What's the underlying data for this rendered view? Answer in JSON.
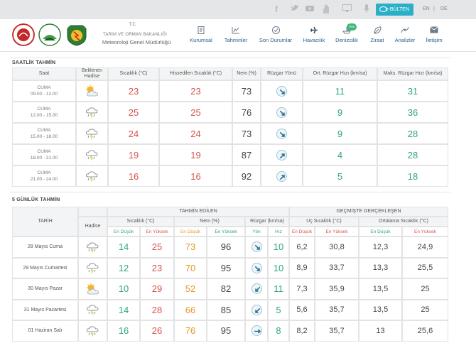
{
  "topbar": {
    "icons": [
      "facebook-icon",
      "twitter-icon",
      "youtube-icon",
      "hand-icon",
      "desktop-icon",
      "microphone-icon"
    ],
    "ebulten_label": "e-BÜLTEN",
    "lang_en": "EN",
    "lang_sep": "|",
    "lang_de": "DE"
  },
  "header": {
    "tc": "T.C.",
    "ministry": "TARIM VE ORMAN BAKANLIĞI",
    "agency": "Meteoroloji Genel Müdürlüğü",
    "nav": [
      {
        "label": "Kurumsal",
        "icon": "book-icon"
      },
      {
        "label": "Tahminler",
        "icon": "chart-icon"
      },
      {
        "label": "Son Durumlar",
        "icon": "check-icon"
      },
      {
        "label": "Havacılık",
        "icon": "plane-icon"
      },
      {
        "label": "Denizcilik",
        "icon": "ship-icon"
      },
      {
        "label": "Ziraat",
        "icon": "leaf-icon"
      },
      {
        "label": "Analizler",
        "icon": "analysis-icon"
      },
      {
        "label": "İletişim",
        "icon": "mail-icon"
      }
    ],
    "yeni_badge": "Yeni"
  },
  "hourly": {
    "title": "SAATLİK TAHMİN",
    "headers": {
      "saat": "Saat",
      "beklenen": "Beklenen\nHadise",
      "sicaklik": "Sıcaklık (°C)",
      "hissedilen": "Hissedilen Sıcaklık (°C)",
      "nem": "Nem (%)",
      "ruzgar_yonu": "Rüzgar Yönü",
      "ort_ruzgar": "Ort. Rüzgar Hızı (km/sa)",
      "maks_ruzgar": "Maks. Rüzgar Hızı (km/sa)"
    },
    "rows": [
      {
        "day": "CUMA",
        "time": "09.00 - 12.00",
        "icon": "partly-cloudy-icon",
        "temp": "23",
        "feels": "23",
        "humidity": "73",
        "wind_dir": "southeast-arrow",
        "avg_wind": "11",
        "max_wind": "31"
      },
      {
        "day": "CUMA",
        "time": "12.00 - 15.00",
        "icon": "rain-thunder-icon",
        "temp": "25",
        "feels": "25",
        "humidity": "76",
        "wind_dir": "southeast-arrow",
        "avg_wind": "9",
        "max_wind": "36"
      },
      {
        "day": "CUMA",
        "time": "15.00 - 18.00",
        "icon": "rain-thunder-icon",
        "temp": "24",
        "feels": "24",
        "humidity": "73",
        "wind_dir": "southeast-arrow",
        "avg_wind": "9",
        "max_wind": "28"
      },
      {
        "day": "CUMA",
        "time": "18.00 - 21.00",
        "icon": "rain-thunder-icon",
        "temp": "19",
        "feels": "19",
        "humidity": "87",
        "wind_dir": "northeast-arrow",
        "avg_wind": "4",
        "max_wind": "28"
      },
      {
        "day": "CUMA",
        "time": "21.00 - 24.00",
        "icon": "rain-thunder-icon",
        "temp": "16",
        "feels": "16",
        "humidity": "92",
        "wind_dir": "northeast-arrow",
        "avg_wind": "5",
        "max_wind": "18"
      }
    ]
  },
  "daily": {
    "title": "5 GÜNLÜK TAHMİN",
    "headers": {
      "tarih": "TARİH",
      "hadise": "Hadise",
      "tahmin_edilen": "TAHMİN EDİLEN",
      "gecmiste": "GEÇMİŞTE GERÇEKLEŞEN",
      "sicaklik": "Sıcaklık (°C)",
      "nem": "Nem (%)",
      "ruzgar": "Rüzgar (km/sa)",
      "uc_sicaklik": "Uç Sıcaklık (°C)",
      "ort_sicaklik": "Ortalama Sıcaklık (°C)",
      "en_dusuk": "En Düşük",
      "en_yuksek": "En Yüksek",
      "yon": "Yön",
      "hiz": "Hız"
    },
    "rows": [
      {
        "date": "28 Mayıs Cuma",
        "icon": "rain-thunder-icon",
        "tmin": "14",
        "tmax": "25",
        "hmin": "73",
        "hmax": "96",
        "wdir": "southeast-arrow",
        "wspd": "10",
        "xmin": "6,2",
        "xmax": "30,8",
        "amin": "12,3",
        "amax": "24,9"
      },
      {
        "date": "29 Mayıs Cumartesi",
        "icon": "rain-thunder-icon",
        "tmin": "12",
        "tmax": "23",
        "hmin": "70",
        "hmax": "95",
        "wdir": "southeast-arrow",
        "wspd": "10",
        "xmin": "8,9",
        "xmax": "33,7",
        "amin": "13,3",
        "amax": "25,5"
      },
      {
        "date": "30 Mayıs Pazar",
        "icon": "partly-cloudy-icon",
        "tmin": "10",
        "tmax": "29",
        "hmin": "52",
        "hmax": "82",
        "wdir": "southwest-arrow",
        "wspd": "11",
        "xmin": "7,3",
        "xmax": "35,9",
        "amin": "13,5",
        "amax": "25"
      },
      {
        "date": "31 Mayıs Pazartesi",
        "icon": "rain-thunder-icon",
        "tmin": "14",
        "tmax": "28",
        "hmin": "66",
        "hmax": "85",
        "wdir": "southwest-arrow",
        "wspd": "5",
        "xmin": "5,6",
        "xmax": "35,7",
        "amin": "13,5",
        "amax": "25"
      },
      {
        "date": "01 Haziran Salı",
        "icon": "rain-thunder-icon",
        "tmin": "16",
        "tmax": "26",
        "hmin": "76",
        "hmax": "95",
        "wdir": "east-arrow",
        "wspd": "8",
        "xmin": "8,2",
        "xmax": "35,7",
        "amin": "13",
        "amax": "25,6"
      }
    ]
  }
}
